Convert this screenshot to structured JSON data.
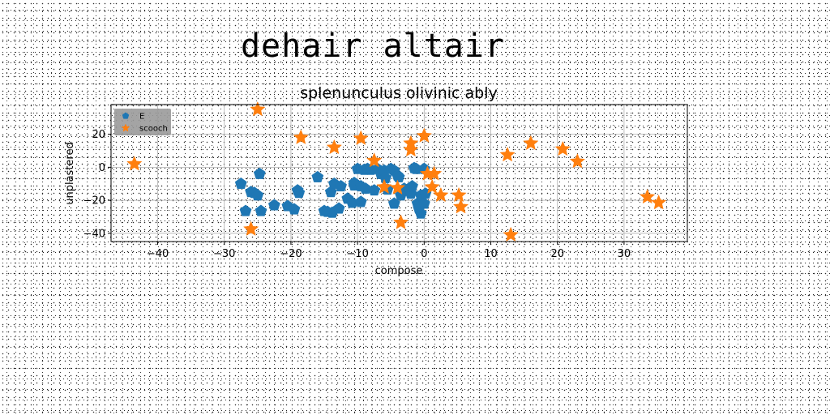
{
  "figure": {
    "title": "dehair altair"
  },
  "chart_data": {
    "type": "scatter",
    "title": "splenunculus olivinic ably",
    "xlabel": "compose",
    "ylabel": "unplastered",
    "xlim": [
      -47,
      39.5
    ],
    "ylim": [
      -45,
      38
    ],
    "xticks": [
      -40,
      -30,
      -20,
      -10,
      0,
      10,
      20,
      30
    ],
    "yticks": [
      -40,
      -20,
      0,
      20
    ],
    "grid": true,
    "legend_position": "upper-left",
    "series": [
      {
        "name": "E",
        "marker": "pentagon",
        "color": "#1f77b4",
        "points": [
          [
            -27.5,
            -10
          ],
          [
            -26.8,
            -26.5
          ],
          [
            -26,
            -15
          ],
          [
            -25.5,
            -15.5
          ],
          [
            -25,
            -17
          ],
          [
            -24.7,
            -4
          ],
          [
            -24.5,
            -26.5
          ],
          [
            -22.5,
            -23
          ],
          [
            -20.5,
            -23.5
          ],
          [
            -19.5,
            -25.5
          ],
          [
            -19,
            -14
          ],
          [
            -18.8,
            -15.5
          ],
          [
            -16,
            -6
          ],
          [
            -15,
            -26.5
          ],
          [
            -14.5,
            -27
          ],
          [
            -13.8,
            -27.5
          ],
          [
            -14,
            -15
          ],
          [
            -13.5,
            -10
          ],
          [
            -12.8,
            -25
          ],
          [
            -12.5,
            -11.5
          ],
          [
            -11.5,
            -19
          ],
          [
            -10.8,
            -21.5
          ],
          [
            -10.5,
            -9.5
          ],
          [
            -10.5,
            -11
          ],
          [
            -10,
            -1
          ],
          [
            -9.5,
            -11.5
          ],
          [
            -9.5,
            -21
          ],
          [
            -9,
            -1.5
          ],
          [
            -8.8,
            -13
          ],
          [
            -8.5,
            -1
          ],
          [
            -8,
            -1.5
          ],
          [
            -7.5,
            -14
          ],
          [
            -7,
            -1
          ],
          [
            -6.5,
            -4
          ],
          [
            -6,
            -2
          ],
          [
            -5.8,
            -6.5
          ],
          [
            -5.5,
            -13.5
          ],
          [
            -5,
            -1
          ],
          [
            -4.5,
            -2
          ],
          [
            -4.5,
            -22
          ],
          [
            -4,
            -5
          ],
          [
            -3.8,
            -6
          ],
          [
            -3.5,
            -17
          ],
          [
            -3,
            -13
          ],
          [
            -2.5,
            -14
          ],
          [
            -2,
            -16
          ],
          [
            -1.8,
            -11.5
          ],
          [
            -1.5,
            -0.5
          ],
          [
            -1.2,
            -1
          ],
          [
            -1,
            -22
          ],
          [
            -0.8,
            -25
          ],
          [
            -0.5,
            -28
          ],
          [
            -0.5,
            -17
          ],
          [
            0,
            -22
          ],
          [
            0.2,
            -16
          ],
          [
            0,
            -1
          ]
        ]
      },
      {
        "name": "scooch",
        "marker": "star",
        "color": "#ff7f0e",
        "points": [
          [
            -43.5,
            2
          ],
          [
            -25,
            35
          ],
          [
            -26,
            -37.5
          ],
          [
            -18.5,
            18
          ],
          [
            -13.5,
            12
          ],
          [
            -9.5,
            17.5
          ],
          [
            -7.5,
            4
          ],
          [
            -6,
            -12
          ],
          [
            -4,
            -12.5
          ],
          [
            -3.5,
            -33.5
          ],
          [
            -2,
            10.5
          ],
          [
            -2,
            14.5
          ],
          [
            0,
            19
          ],
          [
            0.5,
            -4
          ],
          [
            1.2,
            -12
          ],
          [
            1.5,
            -4
          ],
          [
            2.5,
            -17
          ],
          [
            5.2,
            -17
          ],
          [
            5.5,
            -24
          ],
          [
            12.5,
            7.5
          ],
          [
            13,
            -41
          ],
          [
            16,
            14.5
          ],
          [
            20.8,
            11
          ],
          [
            23,
            3.5
          ],
          [
            33.5,
            -18
          ],
          [
            35.2,
            -21.5
          ]
        ]
      }
    ]
  }
}
